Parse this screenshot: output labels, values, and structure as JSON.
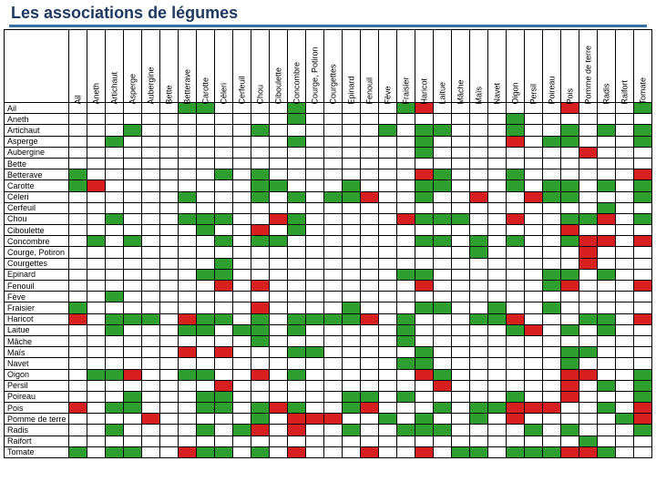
{
  "title": "Les associations de légumes",
  "colors": {
    "good": "#2e9e2e",
    "bad": "#d81f1f",
    "empty": "#ffffff",
    "border": "#000000",
    "title_color": "#1f3a62",
    "rule_color": "#3a6ea5"
  },
  "vegetables": [
    "Ail",
    "Aneth",
    "Artichaut",
    "Asperge",
    "Aubergine",
    "Bette",
    "Betterave",
    "Carotte",
    "Céleri",
    "Cerfeuil",
    "Chou",
    "Ciboulette",
    "Concombre",
    "Courge, Potiron",
    "Courgettes",
    "Epinard",
    "Fenouil",
    "Fève",
    "Fraisier",
    "Haricot",
    "Laitue",
    "Mâche",
    "Maïs",
    "Navet",
    "Oigon",
    "Persil",
    "Poireau",
    "Pois",
    "Pomme de terre",
    "Radis",
    "Raifort",
    "Tomate"
  ],
  "matrix": [
    [
      0,
      0,
      0,
      0,
      0,
      0,
      1,
      1,
      0,
      0,
      0,
      0,
      1,
      0,
      0,
      0,
      0,
      0,
      1,
      2,
      0,
      0,
      0,
      0,
      0,
      0,
      0,
      2,
      0,
      0,
      0,
      1
    ],
    [
      0,
      0,
      0,
      0,
      0,
      0,
      0,
      0,
      0,
      0,
      0,
      0,
      1,
      0,
      0,
      0,
      0,
      0,
      0,
      0,
      0,
      0,
      0,
      0,
      1,
      0,
      0,
      0,
      0,
      0,
      0,
      0
    ],
    [
      0,
      0,
      0,
      1,
      0,
      0,
      0,
      0,
      0,
      0,
      1,
      0,
      0,
      0,
      0,
      0,
      0,
      1,
      0,
      1,
      1,
      0,
      0,
      0,
      1,
      0,
      0,
      1,
      0,
      1,
      0,
      1
    ],
    [
      0,
      0,
      1,
      0,
      0,
      0,
      0,
      0,
      0,
      0,
      0,
      0,
      1,
      0,
      0,
      0,
      0,
      0,
      0,
      1,
      0,
      0,
      0,
      0,
      2,
      0,
      1,
      1,
      0,
      0,
      0,
      1
    ],
    [
      0,
      0,
      0,
      0,
      0,
      0,
      0,
      0,
      0,
      0,
      0,
      0,
      0,
      0,
      0,
      0,
      0,
      0,
      0,
      1,
      0,
      0,
      0,
      0,
      0,
      0,
      0,
      0,
      2,
      0,
      0,
      0
    ],
    [
      0,
      0,
      0,
      0,
      0,
      0,
      0,
      0,
      0,
      0,
      0,
      0,
      0,
      0,
      0,
      0,
      0,
      0,
      0,
      0,
      0,
      0,
      0,
      0,
      0,
      0,
      0,
      0,
      0,
      0,
      0,
      0
    ],
    [
      1,
      0,
      0,
      0,
      0,
      0,
      0,
      0,
      1,
      0,
      1,
      0,
      0,
      0,
      0,
      0,
      0,
      0,
      0,
      2,
      1,
      0,
      0,
      0,
      1,
      0,
      0,
      0,
      0,
      0,
      0,
      2
    ],
    [
      1,
      2,
      0,
      0,
      0,
      0,
      0,
      0,
      0,
      0,
      1,
      1,
      0,
      0,
      0,
      1,
      0,
      0,
      0,
      1,
      1,
      0,
      0,
      0,
      1,
      0,
      1,
      1,
      0,
      1,
      0,
      1
    ],
    [
      0,
      0,
      0,
      0,
      0,
      0,
      1,
      0,
      0,
      0,
      1,
      0,
      1,
      0,
      1,
      1,
      2,
      0,
      0,
      1,
      0,
      0,
      2,
      0,
      0,
      2,
      1,
      1,
      0,
      0,
      0,
      1
    ],
    [
      0,
      0,
      0,
      0,
      0,
      0,
      0,
      0,
      0,
      0,
      0,
      0,
      0,
      0,
      0,
      0,
      0,
      0,
      0,
      0,
      0,
      0,
      0,
      0,
      0,
      0,
      0,
      0,
      0,
      1,
      0,
      0
    ],
    [
      0,
      0,
      1,
      0,
      0,
      0,
      1,
      1,
      1,
      0,
      0,
      2,
      1,
      0,
      0,
      0,
      0,
      0,
      2,
      1,
      1,
      1,
      0,
      0,
      2,
      0,
      0,
      1,
      1,
      2,
      0,
      1
    ],
    [
      0,
      0,
      0,
      0,
      0,
      0,
      0,
      1,
      0,
      0,
      2,
      0,
      1,
      0,
      0,
      0,
      0,
      0,
      0,
      0,
      0,
      0,
      0,
      0,
      0,
      0,
      0,
      2,
      0,
      0,
      0,
      0
    ],
    [
      0,
      1,
      0,
      1,
      0,
      0,
      0,
      0,
      1,
      0,
      1,
      1,
      0,
      0,
      0,
      0,
      0,
      0,
      0,
      1,
      1,
      0,
      1,
      0,
      1,
      0,
      0,
      1,
      2,
      2,
      0,
      2
    ],
    [
      0,
      0,
      0,
      0,
      0,
      0,
      0,
      0,
      0,
      0,
      0,
      0,
      0,
      0,
      0,
      0,
      0,
      0,
      0,
      0,
      0,
      0,
      1,
      0,
      0,
      0,
      0,
      0,
      2,
      0,
      0,
      0
    ],
    [
      0,
      0,
      0,
      0,
      0,
      0,
      0,
      0,
      1,
      0,
      0,
      0,
      0,
      0,
      0,
      0,
      0,
      0,
      0,
      0,
      0,
      0,
      0,
      0,
      0,
      0,
      0,
      0,
      2,
      0,
      0,
      0
    ],
    [
      0,
      0,
      0,
      0,
      0,
      0,
      0,
      1,
      1,
      0,
      0,
      0,
      0,
      0,
      0,
      0,
      0,
      0,
      1,
      1,
      0,
      0,
      0,
      0,
      0,
      0,
      1,
      1,
      0,
      1,
      0,
      0
    ],
    [
      0,
      0,
      0,
      0,
      0,
      0,
      0,
      0,
      2,
      0,
      2,
      0,
      0,
      0,
      0,
      0,
      0,
      0,
      0,
      2,
      0,
      0,
      0,
      0,
      0,
      0,
      1,
      2,
      0,
      0,
      0,
      2
    ],
    [
      0,
      0,
      1,
      0,
      0,
      0,
      0,
      0,
      0,
      0,
      0,
      0,
      0,
      0,
      0,
      0,
      0,
      0,
      0,
      0,
      0,
      0,
      0,
      0,
      0,
      0,
      0,
      0,
      0,
      0,
      0,
      0
    ],
    [
      1,
      0,
      0,
      0,
      0,
      0,
      0,
      0,
      0,
      0,
      2,
      0,
      0,
      0,
      0,
      1,
      0,
      0,
      0,
      1,
      1,
      0,
      0,
      1,
      0,
      0,
      1,
      0,
      0,
      0,
      0,
      0
    ],
    [
      2,
      0,
      1,
      1,
      1,
      0,
      2,
      1,
      1,
      0,
      1,
      0,
      1,
      1,
      1,
      1,
      2,
      0,
      1,
      0,
      0,
      0,
      1,
      1,
      2,
      0,
      0,
      0,
      1,
      1,
      0,
      2
    ],
    [
      0,
      0,
      1,
      0,
      0,
      0,
      1,
      1,
      0,
      1,
      1,
      0,
      1,
      0,
      0,
      0,
      0,
      0,
      1,
      0,
      0,
      0,
      0,
      0,
      1,
      2,
      0,
      1,
      0,
      1,
      0,
      0
    ],
    [
      0,
      0,
      0,
      0,
      0,
      0,
      0,
      0,
      0,
      0,
      1,
      0,
      0,
      0,
      0,
      0,
      0,
      0,
      1,
      0,
      0,
      0,
      0,
      0,
      0,
      0,
      0,
      0,
      0,
      0,
      0,
      0
    ],
    [
      0,
      0,
      0,
      0,
      0,
      0,
      2,
      0,
      2,
      0,
      0,
      0,
      1,
      1,
      0,
      0,
      0,
      0,
      0,
      1,
      0,
      0,
      0,
      0,
      0,
      0,
      0,
      1,
      1,
      0,
      0,
      0
    ],
    [
      0,
      0,
      0,
      0,
      0,
      0,
      0,
      0,
      0,
      0,
      0,
      0,
      0,
      0,
      0,
      0,
      0,
      0,
      1,
      1,
      0,
      0,
      0,
      0,
      0,
      0,
      0,
      1,
      0,
      0,
      0,
      0
    ],
    [
      0,
      1,
      1,
      2,
      0,
      0,
      1,
      1,
      0,
      0,
      2,
      0,
      1,
      0,
      0,
      0,
      0,
      0,
      0,
      2,
      1,
      0,
      0,
      0,
      0,
      0,
      0,
      2,
      2,
      0,
      0,
      1
    ],
    [
      0,
      0,
      0,
      0,
      0,
      0,
      0,
      0,
      2,
      0,
      0,
      0,
      0,
      0,
      0,
      0,
      0,
      0,
      0,
      0,
      2,
      0,
      0,
      0,
      0,
      0,
      0,
      2,
      0,
      1,
      0,
      1
    ],
    [
      0,
      0,
      0,
      1,
      0,
      0,
      0,
      1,
      1,
      0,
      0,
      0,
      0,
      0,
      0,
      1,
      1,
      0,
      1,
      0,
      0,
      0,
      0,
      0,
      1,
      0,
      0,
      2,
      0,
      0,
      0,
      1
    ],
    [
      2,
      0,
      1,
      1,
      0,
      0,
      0,
      1,
      1,
      0,
      1,
      2,
      1,
      0,
      0,
      1,
      2,
      0,
      0,
      0,
      1,
      0,
      1,
      1,
      2,
      2,
      2,
      0,
      0,
      1,
      0,
      2
    ],
    [
      0,
      0,
      0,
      0,
      2,
      0,
      0,
      0,
      0,
      0,
      1,
      0,
      2,
      2,
      2,
      0,
      0,
      1,
      0,
      1,
      0,
      0,
      1,
      0,
      2,
      0,
      0,
      0,
      0,
      0,
      1,
      2
    ],
    [
      0,
      0,
      1,
      0,
      0,
      0,
      0,
      1,
      0,
      1,
      2,
      0,
      2,
      0,
      0,
      1,
      0,
      0,
      1,
      1,
      1,
      0,
      0,
      0,
      0,
      1,
      0,
      1,
      0,
      0,
      0,
      1
    ],
    [
      0,
      0,
      0,
      0,
      0,
      0,
      0,
      0,
      0,
      0,
      0,
      0,
      0,
      0,
      0,
      0,
      0,
      0,
      0,
      0,
      0,
      0,
      0,
      0,
      0,
      0,
      0,
      0,
      1,
      0,
      0,
      0
    ],
    [
      1,
      0,
      1,
      1,
      0,
      0,
      2,
      1,
      1,
      0,
      1,
      0,
      2,
      0,
      0,
      0,
      2,
      0,
      0,
      2,
      0,
      1,
      1,
      0,
      1,
      1,
      1,
      2,
      2,
      1,
      0,
      0
    ]
  ]
}
